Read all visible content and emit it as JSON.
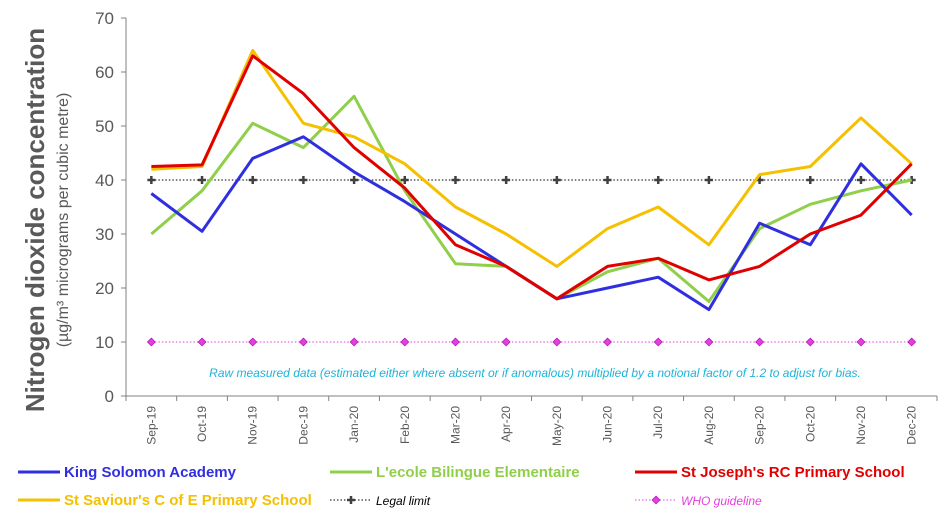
{
  "chart_data": {
    "type": "line",
    "ylabel": "Nitrogen dioxide concentration",
    "ylabel_sub": "(µg/m³ micrograms per cubic metre)",
    "ylim": [
      0,
      70
    ],
    "yticks": [
      0,
      10,
      20,
      30,
      40,
      50,
      60,
      70
    ],
    "categories": [
      "Sep-19",
      "Oct-19",
      "Nov-19",
      "Dec-19",
      "Jan-20",
      "Feb-20",
      "Mar-20",
      "Apr-20",
      "May-20",
      "Jun-20",
      "Jul-20",
      "Aug-20",
      "Sep-20",
      "Oct-20",
      "Nov-20",
      "Dec-20"
    ],
    "annotation": "Raw measured data (estimated either where absent or if anomalous) multiplied by a notional factor of 1.2 to adjust for bias.",
    "grid": false,
    "legend_position": "bottom",
    "series": [
      {
        "name": "King Solomon Academy",
        "color": "#2f2fe0",
        "style": "solid",
        "values": [
          37.5,
          30.5,
          44,
          48,
          41.5,
          36,
          30,
          24,
          18,
          20,
          22,
          16,
          32,
          28,
          43,
          33.5
        ]
      },
      {
        "name": "L'ecole Bilingue Elementaire",
        "color": "#8fcf4a",
        "style": "solid",
        "values": [
          30,
          38,
          50.5,
          46,
          55.5,
          38,
          24.5,
          24,
          18,
          23,
          25.5,
          17.5,
          31,
          35.5,
          38,
          40
        ]
      },
      {
        "name": "St Joseph's RC Primary School",
        "color": "#e00000",
        "style": "solid",
        "values": [
          42.5,
          42.8,
          63,
          56,
          46,
          38.5,
          28,
          24,
          18,
          24,
          25.5,
          21.5,
          24,
          30,
          33.5,
          43
        ]
      },
      {
        "name": "St Saviour's C of E Primary School",
        "color": "#f5c000",
        "style": "solid",
        "values": [
          42,
          42.5,
          64,
          50.5,
          48,
          43,
          35,
          30,
          24,
          31,
          35,
          28,
          41,
          42.5,
          51.5,
          43
        ]
      },
      {
        "name": "Legal limit",
        "color": "#000000",
        "style": "dotted-cross",
        "values": [
          40,
          40,
          40,
          40,
          40,
          40,
          40,
          40,
          40,
          40,
          40,
          40,
          40,
          40,
          40,
          40
        ]
      },
      {
        "name": "WHO guideline",
        "color": "#e040e0",
        "style": "dotted-diamond",
        "values": [
          10,
          10,
          10,
          10,
          10,
          10,
          10,
          10,
          10,
          10,
          10,
          10,
          10,
          10,
          10,
          10
        ]
      }
    ]
  }
}
